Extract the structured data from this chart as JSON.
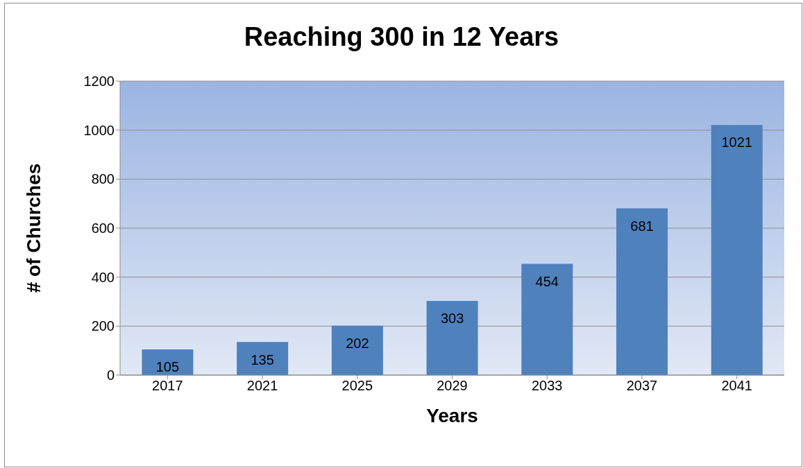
{
  "chart_data": {
    "type": "bar",
    "title": "Reaching 300 in 12 Years",
    "xlabel": "Years",
    "ylabel": "# of Churches",
    "categories": [
      "2017",
      "2021",
      "2025",
      "2029",
      "2033",
      "2037",
      "2041"
    ],
    "values": [
      105,
      135,
      202,
      303,
      454,
      681,
      1021
    ],
    "color": "#4f81bd",
    "ylim": [
      0,
      1200
    ],
    "yticks": [
      0,
      200,
      400,
      600,
      800,
      1000,
      1200
    ],
    "grid": "y",
    "data_labels": true
  }
}
